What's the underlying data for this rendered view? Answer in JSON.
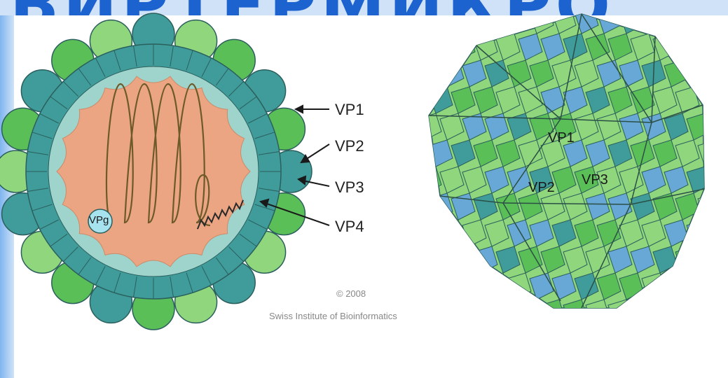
{
  "watermark": "ВИРТЕРМИКРО",
  "cross_section": {
    "labels": [
      "VP1",
      "VP2",
      "VP3",
      "VP4"
    ],
    "genome_tag": "VPg"
  },
  "surface": {
    "labels": [
      "VP1",
      "VP2",
      "VP3"
    ]
  },
  "credit": {
    "year": "© 2008",
    "institute": "Swiss Institute of Bioinformatics"
  },
  "colors": {
    "dark_teal": "#3f9c9a",
    "mid_green": "#5bbf57",
    "light_green": "#8fd67c",
    "pale_teal": "#9fd4cc",
    "blue": "#67a8d6",
    "rna_core": "#eca582",
    "vpg": "#a6e3ee"
  }
}
